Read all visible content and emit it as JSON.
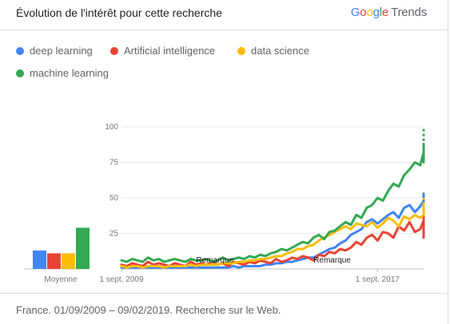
{
  "header": {
    "title": "Évolution de l'intérêt pour cette recherche",
    "brand_google": "Google",
    "brand_trends": "Trends"
  },
  "legend": [
    {
      "label": "deep learning",
      "color": "#4285f4",
      "icon": "blue-dot"
    },
    {
      "label": "Artificial intelligence",
      "color": "#ea4335",
      "icon": "red-dot"
    },
    {
      "label": "data science",
      "color": "#fbbc05",
      "icon": "yellow-dot"
    },
    {
      "label": "machine learning",
      "color": "#34a853",
      "icon": "green-dot"
    }
  ],
  "footer": "France. 01/09/2009 – 09/02/2019. Recherche sur le Web.",
  "chart_data": [
    {
      "type": "bar",
      "categories": [
        "Moyenne"
      ],
      "xlabel": "Moyenne",
      "ylim": [
        0,
        100
      ],
      "series": [
        {
          "name": "deep learning",
          "color": "#4285f4",
          "values": [
            13
          ]
        },
        {
          "name": "Artificial intelligence",
          "color": "#ea4335",
          "values": [
            11
          ]
        },
        {
          "name": "data science",
          "color": "#fbbc05",
          "values": [
            11
          ]
        },
        {
          "name": "machine learning",
          "color": "#34a853",
          "values": [
            29
          ]
        }
      ]
    },
    {
      "type": "line",
      "x_range": [
        "2009-09-01",
        "2019-02-09"
      ],
      "x_ticks": [
        {
          "date": "2009-09-01",
          "label": "1 sept. 2009"
        },
        {
          "date": "2017-09-01",
          "label": "1 sept. 2017"
        }
      ],
      "ylim": [
        0,
        100
      ],
      "y_ticks": [
        25,
        50,
        75,
        100
      ],
      "grid": true,
      "annotations": [
        {
          "date": "2012-01-01",
          "label": "Remarque"
        },
        {
          "date": "2015-09-01",
          "label": "Remarque"
        }
      ],
      "series": [
        {
          "name": "deep learning",
          "color": "#4285f4",
          "start": "2009-09-01",
          "step_months": 2,
          "values": [
            1,
            1,
            1,
            1,
            1,
            1,
            1,
            1,
            1,
            1,
            1,
            1,
            1,
            1,
            1,
            1,
            1,
            1,
            1,
            1,
            1,
            2,
            1,
            2,
            2,
            2,
            2,
            3,
            3,
            4,
            4,
            5,
            5,
            6,
            7,
            8,
            8,
            10,
            12,
            14,
            15,
            18,
            20,
            24,
            26,
            28,
            33,
            35,
            32,
            35,
            38,
            40,
            36,
            43,
            45,
            40,
            44,
            48,
            52,
            50,
            45,
            53,
            47,
            40,
            48,
            50,
            44,
            52
          ],
          "partial_last": true
        },
        {
          "name": "Artificial intelligence",
          "color": "#ea4335",
          "start": "2009-09-01",
          "step_months": 2,
          "values": [
            3,
            2,
            4,
            3,
            2,
            5,
            3,
            4,
            3,
            2,
            4,
            3,
            2,
            5,
            3,
            4,
            3,
            5,
            3,
            4,
            2,
            5,
            4,
            3,
            5,
            4,
            6,
            5,
            4,
            7,
            5,
            6,
            8,
            7,
            9,
            8,
            6,
            10,
            9,
            12,
            11,
            14,
            13,
            15,
            19,
            17,
            22,
            24,
            20,
            26,
            25,
            22,
            30,
            27,
            33,
            26,
            28,
            34,
            30,
            25,
            36,
            29,
            32,
            35,
            22,
            38,
            27,
            34
          ],
          "partial_last": true
        },
        {
          "name": "data science",
          "color": "#fbbc05",
          "start": "2009-09-01",
          "step_months": 2,
          "values": [
            2,
            1,
            2,
            2,
            1,
            2,
            2,
            2,
            1,
            2,
            2,
            2,
            2,
            3,
            2,
            3,
            3,
            3,
            3,
            4,
            4,
            4,
            5,
            5,
            6,
            6,
            7,
            7,
            8,
            9,
            9,
            11,
            12,
            14,
            14,
            16,
            17,
            20,
            22,
            24,
            26,
            28,
            30,
            28,
            32,
            31,
            30,
            33,
            29,
            32,
            36,
            34,
            30,
            37,
            35,
            38,
            36,
            38,
            40,
            41,
            38,
            42,
            44,
            45,
            38,
            46,
            42,
            50
          ],
          "partial_last": true
        },
        {
          "name": "machine learning",
          "color": "#34a853",
          "start": "2009-09-01",
          "step_months": 2,
          "values": [
            6,
            5,
            7,
            6,
            5,
            8,
            6,
            7,
            5,
            6,
            7,
            6,
            5,
            7,
            6,
            6,
            7,
            5,
            6,
            8,
            6,
            7,
            8,
            7,
            9,
            8,
            10,
            9,
            11,
            12,
            14,
            13,
            15,
            17,
            19,
            18,
            22,
            24,
            21,
            26,
            27,
            30,
            33,
            31,
            38,
            36,
            43,
            45,
            50,
            48,
            55,
            60,
            58,
            66,
            70,
            75,
            73,
            82,
            85,
            88,
            84,
            78,
            86,
            75,
            82,
            88,
            80,
            100
          ],
          "partial_last": true
        }
      ]
    }
  ]
}
